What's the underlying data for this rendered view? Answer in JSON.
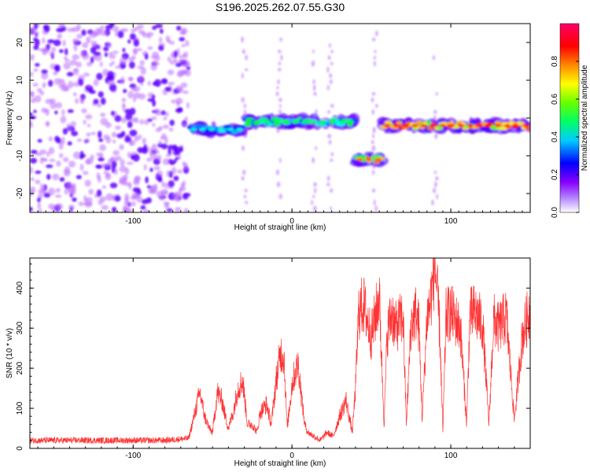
{
  "chart_data": [
    {
      "type": "heatmap",
      "title": "S196.2025.262.07.55.G30",
      "xlabel": "Height of straight line (km)",
      "ylabel": "Frequency (Hz)",
      "xlim": [
        -165,
        150
      ],
      "ylim": [
        -25,
        25
      ],
      "xticks": [
        -100,
        0,
        100
      ],
      "yticks": [
        -20,
        -10,
        0,
        10,
        20
      ],
      "colorbar": {
        "label": "Normalized spectral amplitude",
        "range": [
          0,
          1
        ],
        "ticks": [
          0.0,
          0.2,
          0.4,
          0.6,
          0.8
        ],
        "tick_labels": [
          "0.0",
          "0.2",
          "0.4",
          "0.6",
          "0.8"
        ],
        "colors": [
          "#ffffff",
          "#8800ff",
          "#0000ff",
          "#00ffff",
          "#00ff00",
          "#ffff00",
          "#ff8800",
          "#ff0000",
          "#ff0066"
        ]
      },
      "regions": [
        {
          "name": "noise",
          "x_range": [
            -165,
            -65
          ],
          "freq_range": [
            -25,
            25
          ],
          "amplitude": 0.1
        },
        {
          "name": "signal-band-1",
          "x_range": [
            -65,
            -30
          ],
          "freq": -3,
          "amplitude": 0.4
        },
        {
          "name": "signal-band-2",
          "x_range": [
            -30,
            40
          ],
          "freq": -1,
          "amplitude": 0.5
        },
        {
          "name": "signal-band-3",
          "x_range": [
            40,
            57
          ],
          "freq": -11,
          "amplitude": 0.8
        },
        {
          "name": "signal-band-4",
          "x_range": [
            57,
            150
          ],
          "freq": -2,
          "amplitude": 0.9
        }
      ]
    },
    {
      "type": "line",
      "xlabel": "Height of straight line (km)",
      "ylabel": "SNR (10 * v/v)",
      "xlim": [
        -165,
        150
      ],
      "ylim": [
        0,
        475
      ],
      "xticks": [
        -100,
        0,
        100
      ],
      "yticks": [
        0,
        100,
        200,
        300,
        400
      ],
      "color": "#ff3333",
      "series": [
        {
          "name": "SNR",
          "x": [
            -165,
            -140,
            -120,
            -100,
            -80,
            -65,
            -58,
            -55,
            -52,
            -50,
            -47,
            -44,
            -42,
            -40,
            -37,
            -34,
            -31,
            -28,
            -25,
            -22,
            -20,
            -16,
            -13,
            -10,
            -7,
            -5,
            -3,
            0,
            2,
            4,
            6,
            8,
            10,
            14,
            18,
            22,
            26,
            30,
            34,
            38,
            40,
            42,
            45,
            50,
            55,
            58,
            60,
            63,
            65,
            70,
            72,
            75,
            78,
            80,
            82,
            85,
            87,
            90,
            93,
            95,
            97,
            100,
            103,
            106,
            110,
            112,
            115,
            120,
            124,
            127,
            130,
            135,
            140,
            145,
            150
          ],
          "y": [
            20,
            20,
            20,
            20,
            20,
            25,
            140,
            80,
            50,
            40,
            140,
            120,
            80,
            50,
            90,
            150,
            170,
            60,
            60,
            40,
            90,
            110,
            60,
            170,
            240,
            230,
            50,
            160,
            190,
            210,
            130,
            60,
            40,
            30,
            20,
            40,
            30,
            80,
            120,
            40,
            150,
            340,
            360,
            280,
            380,
            60,
            290,
            340,
            300,
            330,
            60,
            310,
            340,
            300,
            70,
            330,
            360,
            460,
            300,
            40,
            330,
            340,
            320,
            300,
            60,
            330,
            340,
            310,
            60,
            320,
            300,
            330,
            70,
            280,
            350
          ]
        }
      ]
    }
  ]
}
